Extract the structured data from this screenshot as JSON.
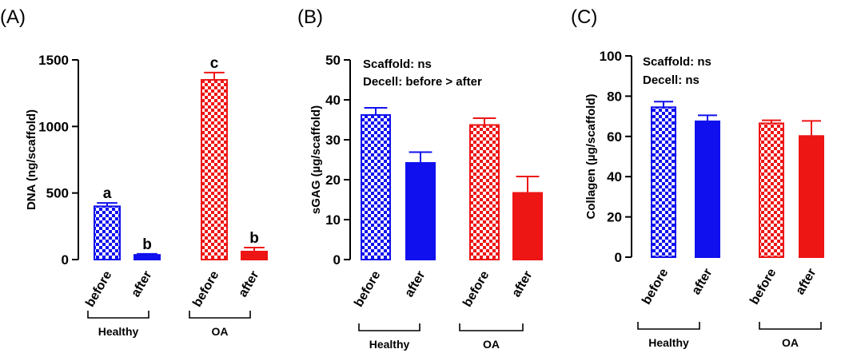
{
  "colors": {
    "blue": "#1010ee",
    "red": "#ee1515",
    "axis": "#000000"
  },
  "chart_data": [
    {
      "type": "bar",
      "panel": "(A)",
      "ylabel": "DNA (ng/scaffold)",
      "ylim": [
        0,
        1500
      ],
      "yticks": [
        0,
        500,
        1000,
        1500
      ],
      "categories": [
        "before",
        "after",
        "before",
        "after"
      ],
      "groups": [
        {
          "label": "Healthy",
          "bars": [
            0,
            1
          ]
        },
        {
          "label": "OA",
          "bars": [
            2,
            3
          ]
        }
      ],
      "values": [
        400,
        35,
        1350,
        60
      ],
      "errors": [
        25,
        8,
        55,
        30
      ],
      "bar_colors": [
        "blue",
        "blue",
        "red",
        "red"
      ],
      "patterns": [
        "checker",
        "solid",
        "checker",
        "solid"
      ],
      "significance": [
        "a",
        "b",
        "c",
        "b"
      ],
      "annotations": []
    },
    {
      "type": "bar",
      "panel": "(B)",
      "ylabel": "sGAG (µg/scaffold)",
      "ylim": [
        0,
        50
      ],
      "yticks": [
        0,
        10,
        20,
        30,
        40,
        50
      ],
      "categories": [
        "before",
        "after",
        "before",
        "after"
      ],
      "groups": [
        {
          "label": "Healthy",
          "bars": [
            0,
            1
          ]
        },
        {
          "label": "OA",
          "bars": [
            2,
            3
          ]
        }
      ],
      "values": [
        36.2,
        24.2,
        33.7,
        16.7
      ],
      "errors": [
        1.8,
        2.7,
        1.7,
        4.1
      ],
      "bar_colors": [
        "blue",
        "blue",
        "red",
        "red"
      ],
      "patterns": [
        "checker",
        "solid",
        "checker",
        "solid"
      ],
      "significance": [],
      "annotations": [
        "Scaffold: ns",
        "Decell: before > after"
      ]
    },
    {
      "type": "bar",
      "panel": "(C)",
      "ylabel": "Collagen (µg/scaffold)",
      "ylim": [
        0,
        100
      ],
      "yticks": [
        0,
        20,
        40,
        60,
        80,
        100
      ],
      "categories": [
        "before",
        "after",
        "before",
        "after"
      ],
      "groups": [
        {
          "label": "Healthy",
          "bars": [
            0,
            1
          ]
        },
        {
          "label": "OA",
          "bars": [
            2,
            3
          ]
        }
      ],
      "values": [
        74.5,
        67.5,
        66.5,
        60.2
      ],
      "errors": [
        2.8,
        3.0,
        1.5,
        7.5
      ],
      "bar_colors": [
        "blue",
        "blue",
        "red",
        "red"
      ],
      "patterns": [
        "checker",
        "solid",
        "checker",
        "solid"
      ],
      "significance": [],
      "annotations": [
        "Scaffold: ns",
        "Decell: ns"
      ]
    }
  ]
}
